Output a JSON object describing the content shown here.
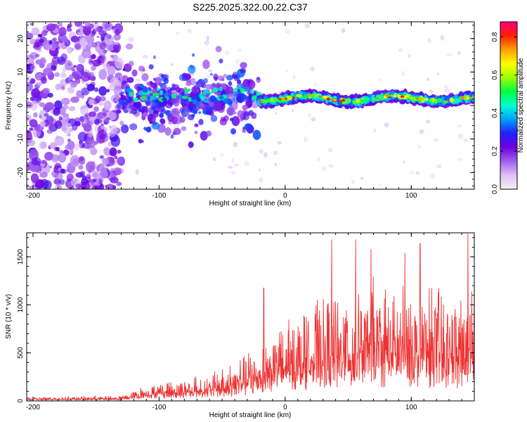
{
  "title": "S225.2025.322.00.22.C37",
  "chart_data": [
    {
      "type": "heatmap",
      "xlabel": "Height of straight line (km)",
      "ylabel": "Frequency (Hz)",
      "xlim": [
        -205,
        150
      ],
      "ylim": [
        -25,
        25
      ],
      "xticks": [
        -200,
        -100,
        0,
        100
      ],
      "yticks": [
        -20,
        -10,
        0,
        10,
        20
      ],
      "colorbar": {
        "label": "Normalized spectral amplitude",
        "range": [
          0.0,
          0.88
        ],
        "ticks": [
          0.0,
          0.2,
          0.4,
          0.6,
          0.8
        ],
        "colors": [
          "#f2f2f2",
          "#e0c0f8",
          "#a060f0",
          "#7000e0",
          "#2020ff",
          "#00a0ff",
          "#00ffd0",
          "#00ff40",
          "#a0ff00",
          "#ffff00",
          "#ffa000",
          "#ff2000",
          "#ff0080"
        ]
      },
      "features": [
        {
          "region": "scattered noise",
          "x": [
            -205,
            -130
          ],
          "y": [
            -25,
            25
          ],
          "level": "low"
        },
        {
          "region": "broad band",
          "x": [
            -130,
            -20
          ],
          "y": [
            -15,
            17
          ],
          "level": "low-mid"
        },
        {
          "region": "narrow band",
          "x": [
            -20,
            150
          ],
          "y": [
            -1,
            6
          ],
          "level": "high",
          "center_hz": 2
        }
      ]
    },
    {
      "type": "line",
      "xlabel": "Height of straight line (km)",
      "ylabel": "SNR (10 * v/v)",
      "xlim": [
        -205,
        150
      ],
      "ylim": [
        0,
        1750
      ],
      "xticks": [
        -200,
        -100,
        0,
        100
      ],
      "yticks": [
        0,
        500,
        1000,
        1500
      ],
      "series": [
        {
          "name": "SNR",
          "color": "#ee3333",
          "envelope": [
            {
              "x": -205,
              "base": 15,
              "amp": 25
            },
            {
              "x": -130,
              "base": 20,
              "amp": 35
            },
            {
              "x": -110,
              "base": 60,
              "amp": 120
            },
            {
              "x": -90,
              "base": 80,
              "amp": 150
            },
            {
              "x": -60,
              "base": 100,
              "amp": 180
            },
            {
              "x": -40,
              "base": 140,
              "amp": 300
            },
            {
              "x": -18,
              "base": 250,
              "amp": 400
            },
            {
              "x": 10,
              "base": 350,
              "amp": 600
            },
            {
              "x": 40,
              "base": 400,
              "amp": 800
            },
            {
              "x": 80,
              "base": 450,
              "amp": 850
            },
            {
              "x": 120,
              "base": 420,
              "amp": 800
            },
            {
              "x": 150,
              "base": 400,
              "amp": 750
            }
          ],
          "peaks": [
            {
              "x": -17,
              "y": 1175
            },
            {
              "x": 37,
              "y": 1680
            },
            {
              "x": 56,
              "y": 1680
            },
            {
              "x": 68,
              "y": 1580
            },
            {
              "x": 95,
              "y": 1540
            },
            {
              "x": 107,
              "y": 1640
            },
            {
              "x": 145,
              "y": 1740
            },
            {
              "x": 148,
              "y": 1140
            }
          ]
        }
      ]
    }
  ]
}
